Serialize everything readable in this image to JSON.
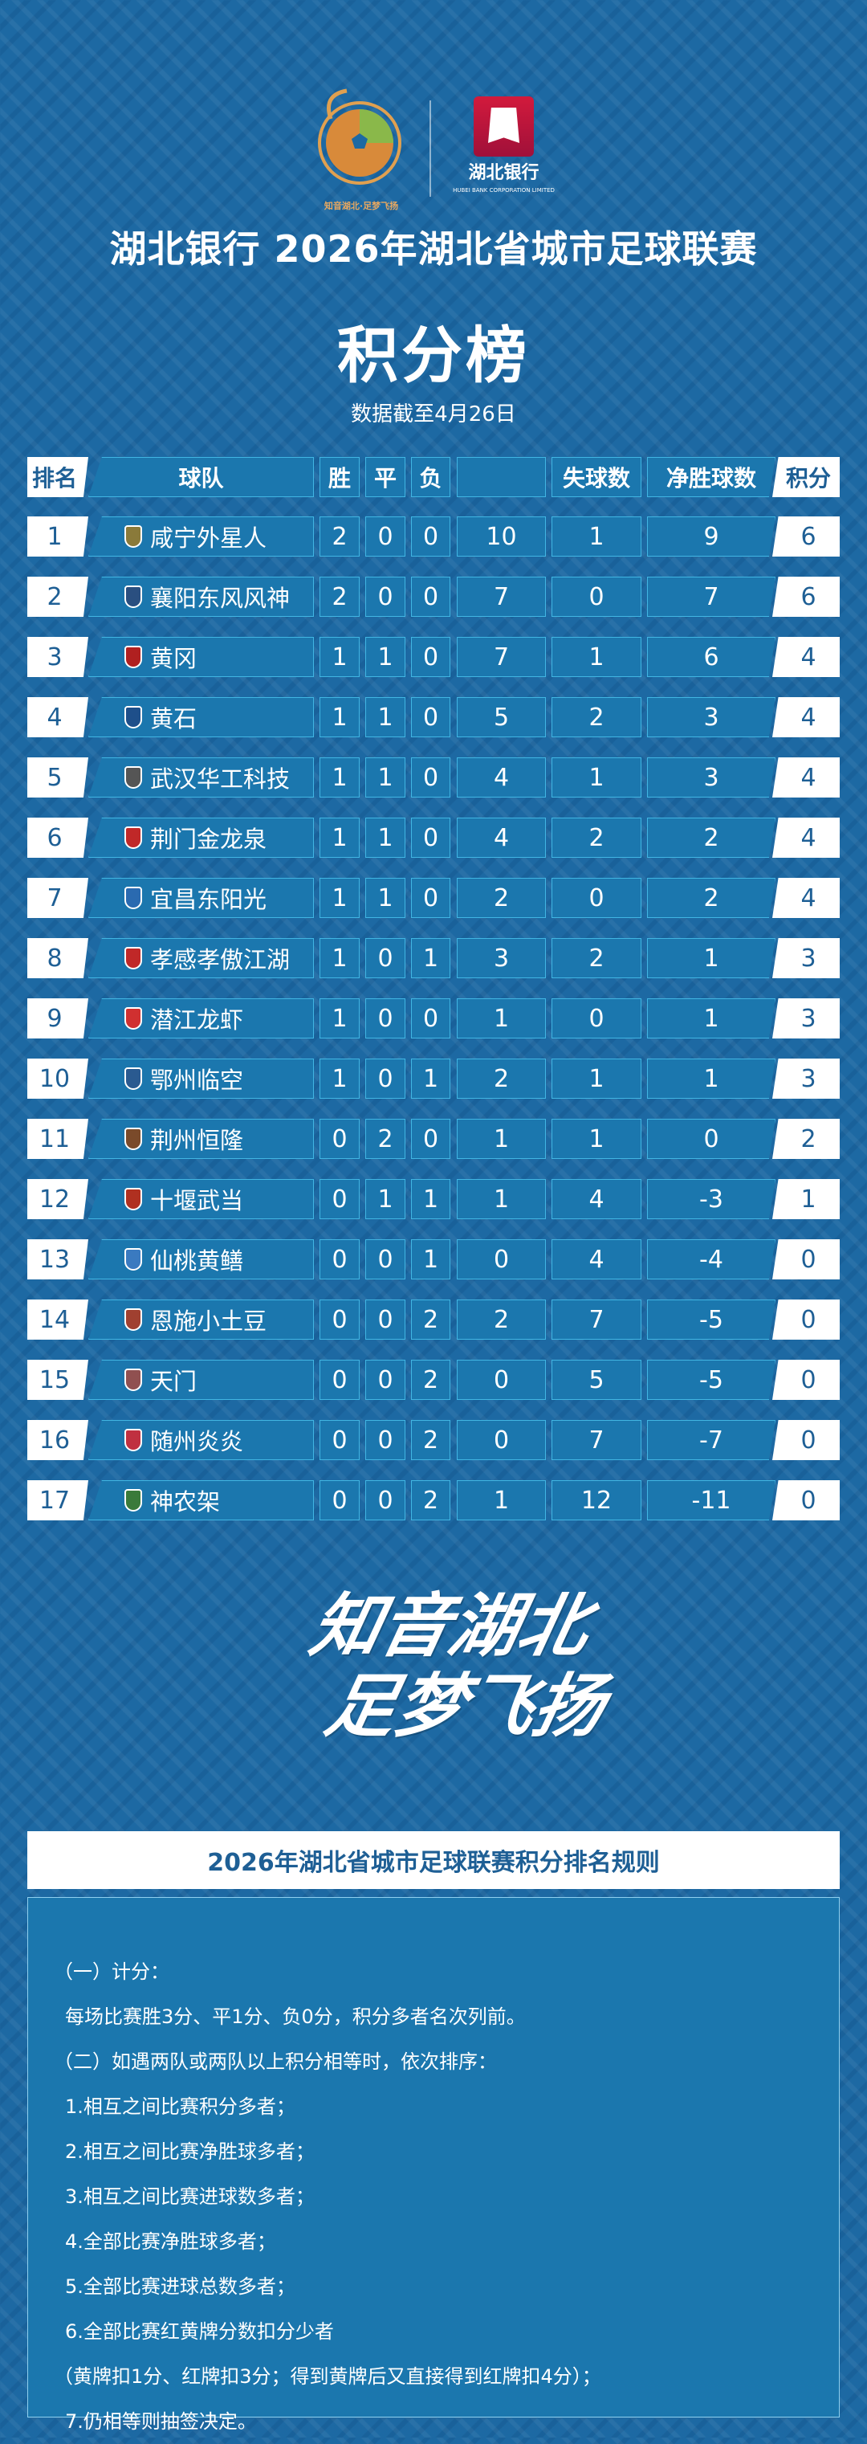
{
  "header": {
    "league_logo_text": "知音湖北·足梦飞扬",
    "sponsor_name": "湖北银行",
    "sponsor_name_en": "HUBEI BANK CORPORATION LIMITED",
    "title": "湖北银行 2026年湖北省城市足球联赛",
    "subtitle": "积分榜",
    "date_note": "数据截至4月26日"
  },
  "colors": {
    "background": "#1d69a3",
    "cell": "#1b77ae",
    "cell_border": "#41b6e3",
    "rank_text": "#1e5f95",
    "bank_red": "#d21a3c"
  },
  "table": {
    "columns": {
      "rank": "排名",
      "team": "球队",
      "w": "胜",
      "d": "平",
      "l": "负",
      "gf": "",
      "ga": "失球数",
      "gd": "净胜球数",
      "pts": "积分"
    },
    "rows": [
      {
        "rank": "1",
        "team": "咸宁外星人",
        "w": "2",
        "d": "0",
        "l": "0",
        "gf": "10",
        "ga": "1",
        "gd": "9",
        "pts": "6",
        "badge": "#8a7a3a"
      },
      {
        "rank": "2",
        "team": "襄阳东风风神",
        "w": "2",
        "d": "0",
        "l": "0",
        "gf": "7",
        "ga": "0",
        "gd": "7",
        "pts": "6",
        "badge": "#2a4f80"
      },
      {
        "rank": "3",
        "team": "黄冈",
        "w": "1",
        "d": "1",
        "l": "0",
        "gf": "7",
        "ga": "1",
        "gd": "6",
        "pts": "4",
        "badge": "#b02020"
      },
      {
        "rank": "4",
        "team": "黄石",
        "w": "1",
        "d": "1",
        "l": "0",
        "gf": "5",
        "ga": "2",
        "gd": "3",
        "pts": "4",
        "badge": "#1e4f8a"
      },
      {
        "rank": "5",
        "team": "武汉华工科技",
        "w": "1",
        "d": "1",
        "l": "0",
        "gf": "4",
        "ga": "1",
        "gd": "3",
        "pts": "4",
        "badge": "#555555"
      },
      {
        "rank": "6",
        "team": "荆门金龙泉",
        "w": "1",
        "d": "1",
        "l": "0",
        "gf": "4",
        "ga": "2",
        "gd": "2",
        "pts": "4",
        "badge": "#c02828"
      },
      {
        "rank": "7",
        "team": "宜昌东阳光",
        "w": "1",
        "d": "1",
        "l": "0",
        "gf": "2",
        "ga": "0",
        "gd": "2",
        "pts": "4",
        "badge": "#2a6ab0"
      },
      {
        "rank": "8",
        "team": "孝感孝傲江湖",
        "w": "1",
        "d": "0",
        "l": "1",
        "gf": "3",
        "ga": "2",
        "gd": "1",
        "pts": "3",
        "badge": "#c02828"
      },
      {
        "rank": "9",
        "team": "潜江龙虾",
        "w": "1",
        "d": "0",
        "l": "0",
        "gf": "1",
        "ga": "0",
        "gd": "1",
        "pts": "3",
        "badge": "#d03030"
      },
      {
        "rank": "10",
        "team": "鄂州临空",
        "w": "1",
        "d": "0",
        "l": "1",
        "gf": "2",
        "ga": "1",
        "gd": "1",
        "pts": "3",
        "badge": "#2a5a90"
      },
      {
        "rank": "11",
        "team": "荆州恒隆",
        "w": "0",
        "d": "2",
        "l": "0",
        "gf": "1",
        "ga": "1",
        "gd": "0",
        "pts": "2",
        "badge": "#7a4a2a"
      },
      {
        "rank": "12",
        "team": "十堰武当",
        "w": "0",
        "d": "1",
        "l": "1",
        "gf": "1",
        "ga": "4",
        "gd": "-3",
        "pts": "1",
        "badge": "#b03020"
      },
      {
        "rank": "13",
        "team": "仙桃黄鳝",
        "w": "0",
        "d": "0",
        "l": "1",
        "gf": "0",
        "ga": "4",
        "gd": "-4",
        "pts": "0",
        "badge": "#3a7ac0"
      },
      {
        "rank": "14",
        "team": "恩施小土豆",
        "w": "0",
        "d": "0",
        "l": "2",
        "gf": "2",
        "ga": "7",
        "gd": "-5",
        "pts": "0",
        "badge": "#a04030"
      },
      {
        "rank": "15",
        "team": "天门",
        "w": "0",
        "d": "0",
        "l": "2",
        "gf": "0",
        "ga": "5",
        "gd": "-5",
        "pts": "0",
        "badge": "#905050"
      },
      {
        "rank": "16",
        "team": "随州炎炎",
        "w": "0",
        "d": "0",
        "l": "2",
        "gf": "0",
        "ga": "7",
        "gd": "-7",
        "pts": "0",
        "badge": "#c03040"
      },
      {
        "rank": "17",
        "team": "神农架",
        "w": "0",
        "d": "0",
        "l": "2",
        "gf": "1",
        "ga": "12",
        "gd": "-11",
        "pts": "0",
        "badge": "#3a7a3a"
      }
    ]
  },
  "slogan": {
    "line1": "知音湖北",
    "line2": "足梦飞扬"
  },
  "rules": {
    "title": "2026年湖北省城市足球联赛积分排名规则",
    "lines": [
      "（一）计分：",
      "每场比赛胜3分、平1分、负0分，积分多者名次列前。",
      "（二）如遇两队或两队以上积分相等时，依次排序：",
      "1.相互之间比赛积分多者；",
      "2.相互之间比赛净胜球多者；",
      "3.相互之间比赛进球数多者；",
      "4.全部比赛净胜球多者；",
      "5.全部比赛进球总数多者；",
      "6.全部比赛红黄牌分数扣分少者",
      "（黄牌扣1分、红牌扣3分；得到黄牌后又直接得到红牌扣4分）；",
      "7.仍相等则抽签决定。"
    ]
  }
}
